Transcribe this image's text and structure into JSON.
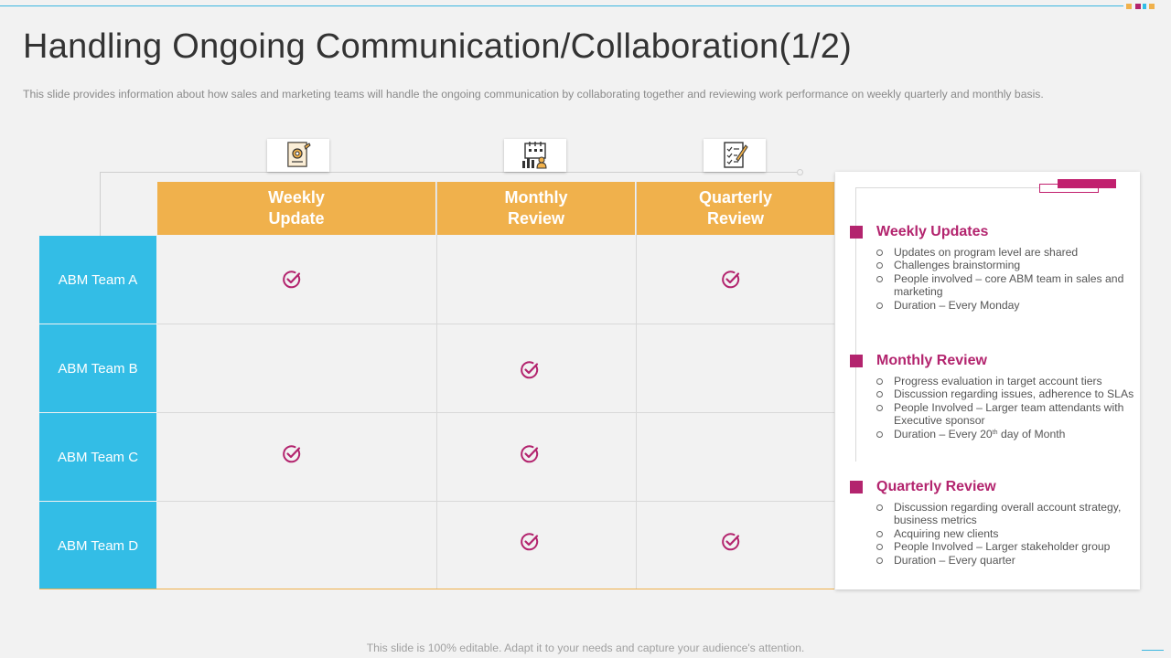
{
  "slide": {
    "title": "Handling Ongoing Communication/Collaboration(1/2)",
    "subtitle": "This slide provides information about how sales and marketing teams will handle the ongoing communication by collaborating together and reviewing work performance on weekly quarterly and monthly basis.",
    "footer": "This slide is 100% editable. Adapt it to your needs and capture your audience's attention."
  },
  "colors": {
    "header": "#f0b14c",
    "row_header": "#33bde6",
    "accent": "#b3246e"
  },
  "table": {
    "columns": [
      {
        "label_line1": "Weekly",
        "label_line2": "Update",
        "icon": "settings-document-icon"
      },
      {
        "label_line1": "Monthly",
        "label_line2": "Review",
        "icon": "calendar-chart-icon"
      },
      {
        "label_line1": "Quarterly",
        "label_line2": "Review",
        "icon": "checklist-document-icon"
      }
    ],
    "rows": [
      {
        "label": "ABM Team A",
        "checks": [
          true,
          false,
          true
        ]
      },
      {
        "label": "ABM Team B",
        "checks": [
          false,
          true,
          false
        ]
      },
      {
        "label": "ABM Team C",
        "checks": [
          true,
          true,
          false
        ]
      },
      {
        "label": "ABM Team D",
        "checks": [
          false,
          true,
          true
        ]
      }
    ]
  },
  "panel": {
    "sections": [
      {
        "title": "Weekly Updates",
        "items": [
          "Updates on program level are shared",
          "Challenges brainstorming",
          "People involved – core ABM team in sales and marketing",
          "Duration – Every Monday"
        ]
      },
      {
        "title": "Monthly Review",
        "items": [
          "Progress evaluation in target account tiers",
          "Discussion regarding issues, adherence to SLAs",
          "People Involved – Larger team attendants with Executive sponsor"
        ],
        "duration_prefix": "Duration – Every 20",
        "duration_sup": "th",
        "duration_suffix": " day of Month"
      },
      {
        "title": "Quarterly Review",
        "items": [
          "Discussion regarding overall account strategy, business metrics",
          "Acquiring new clients",
          "People Involved – Larger stakeholder group",
          "Duration – Every quarter"
        ]
      }
    ]
  }
}
